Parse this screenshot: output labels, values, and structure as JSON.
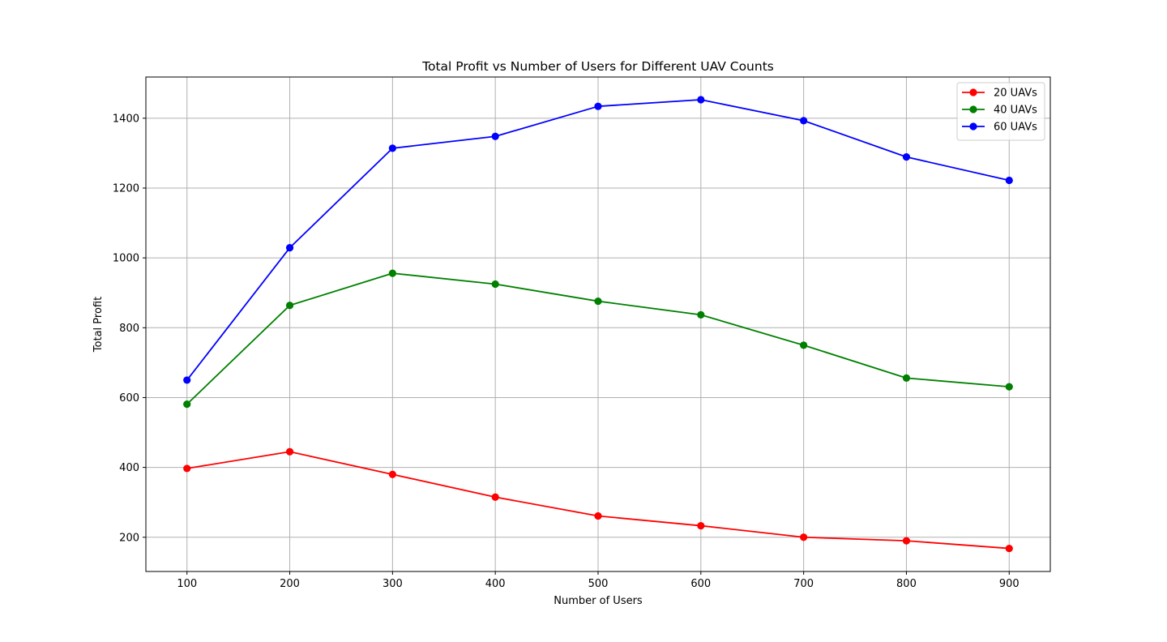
{
  "chart_data": {
    "type": "line",
    "title": "Total Profit vs Number of Users for Different UAV Counts",
    "xlabel": "Number of Users",
    "ylabel": "Total Profit",
    "x": [
      100,
      200,
      300,
      400,
      500,
      600,
      700,
      800,
      900
    ],
    "xticks": [
      100,
      200,
      300,
      400,
      500,
      600,
      700,
      800,
      900
    ],
    "yticks": [
      200,
      400,
      600,
      800,
      1000,
      1200,
      1400
    ],
    "xlim": [
      60,
      940
    ],
    "ylim": [
      102,
      1518
    ],
    "grid": true,
    "legend_position": "top-right",
    "marker": "circle",
    "series": [
      {
        "name": "20 UAVs",
        "color": "#ff0000",
        "values": [
          397,
          445,
          380,
          315,
          261,
          233,
          200,
          190,
          168
        ]
      },
      {
        "name": "40 UAVs",
        "color": "#008000",
        "values": [
          581,
          864,
          956,
          925,
          876,
          837,
          750,
          656,
          631
        ]
      },
      {
        "name": "60 UAVs",
        "color": "#0000ff",
        "values": [
          650,
          1029,
          1314,
          1348,
          1434,
          1453,
          1393,
          1289,
          1222
        ]
      }
    ]
  }
}
